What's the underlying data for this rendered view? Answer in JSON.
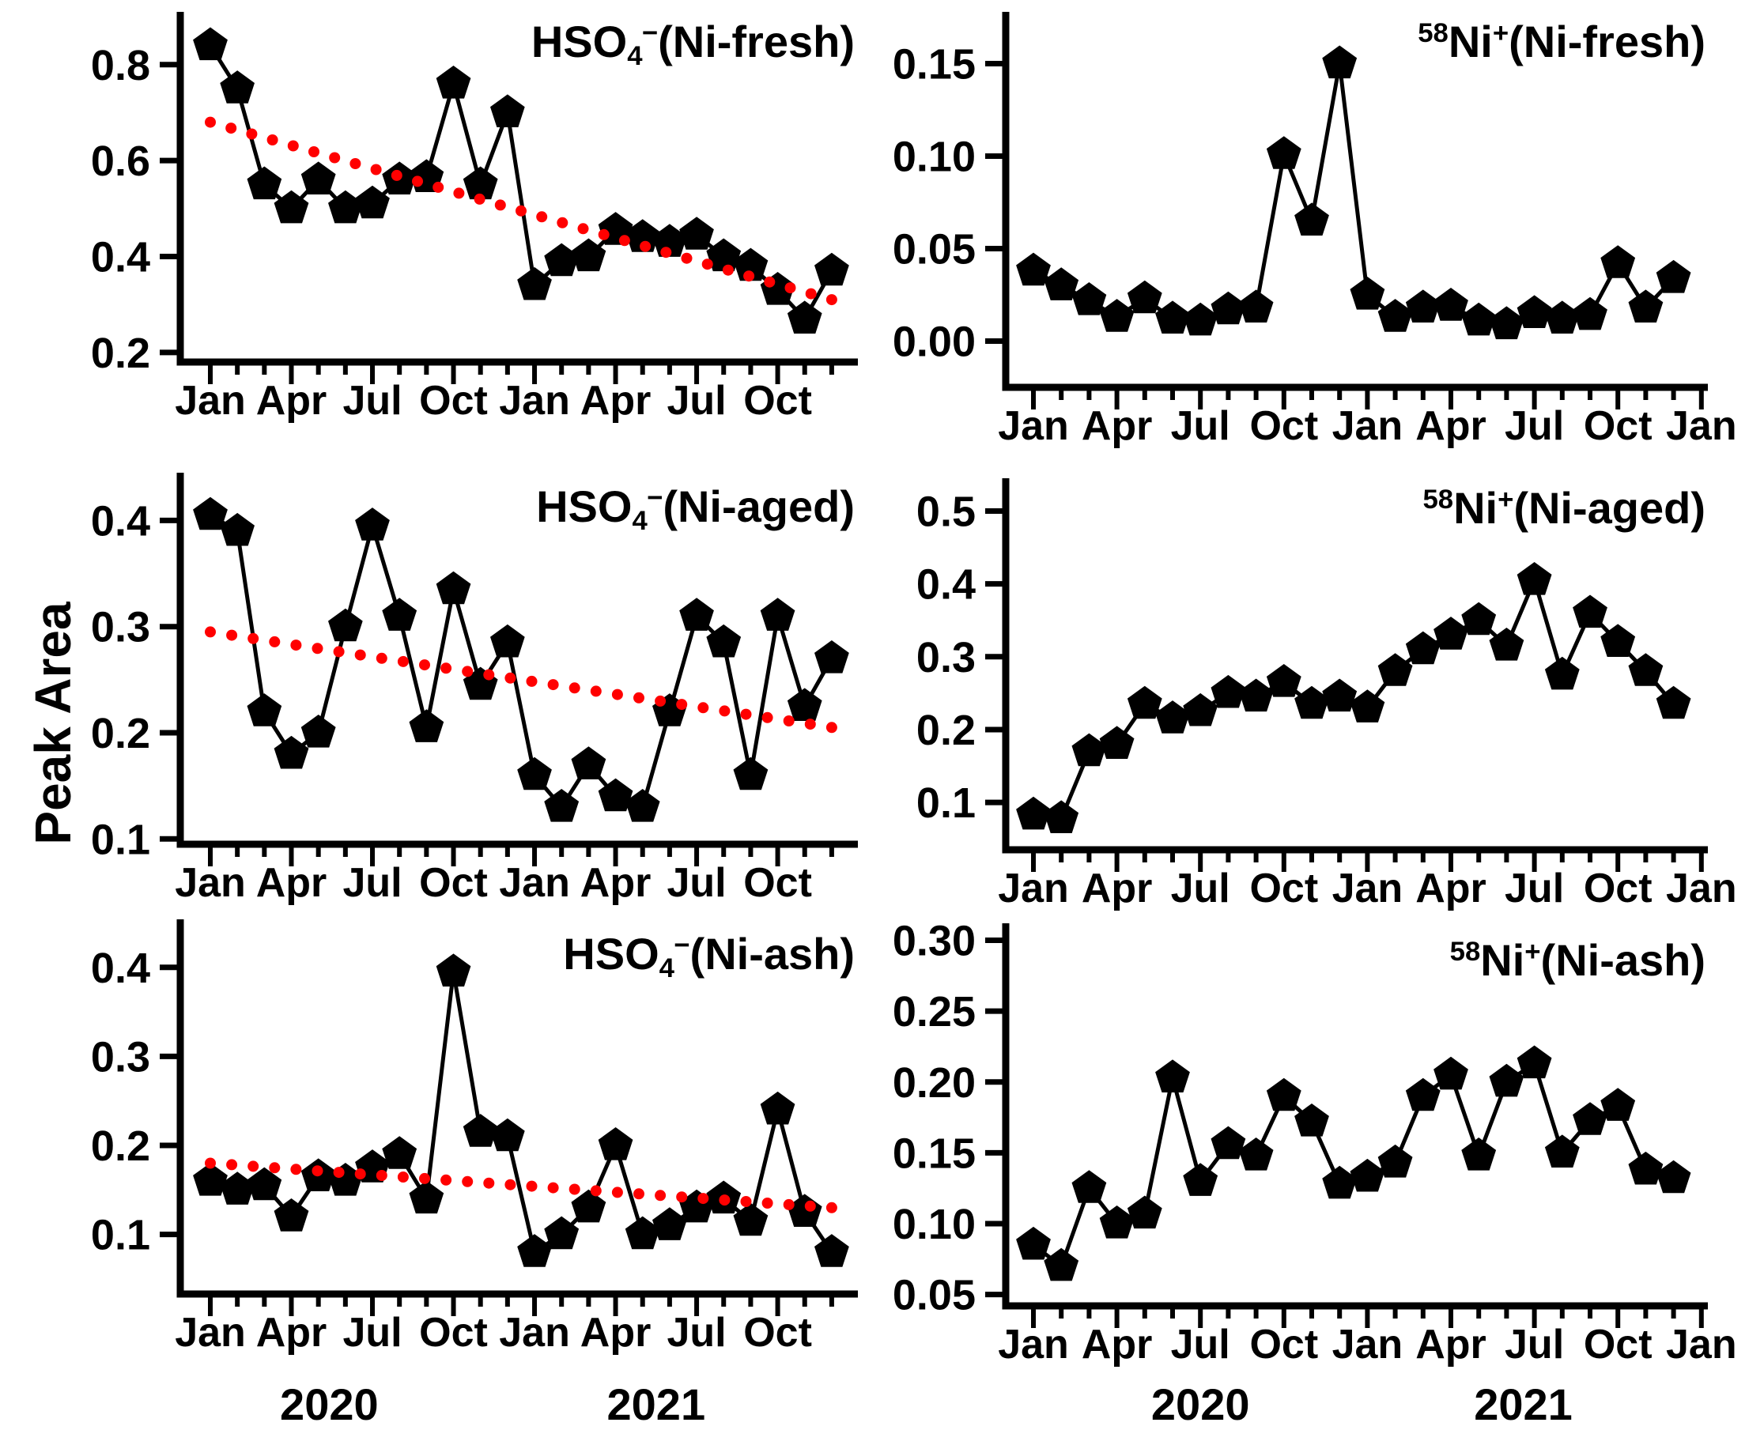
{
  "figure": {
    "ylabel": "Peak Area",
    "background_color": "#ffffff",
    "series_color": "#000000",
    "trend_color": "#ff0000"
  },
  "chart_data": [
    {
      "type": "line",
      "name": "hso4-ni-fresh",
      "panel": {
        "row": 0,
        "col": "left"
      },
      "title": {
        "presup": "",
        "base": "HSO",
        "sub": "4",
        "sup": "−",
        "suffix": "(Ni-fresh)"
      },
      "x": [
        "2020-01",
        "2020-02",
        "2020-03",
        "2020-04",
        "2020-05",
        "2020-06",
        "2020-07",
        "2020-08",
        "2020-09",
        "2020-10",
        "2020-11",
        "2020-12",
        "2021-01",
        "2021-02",
        "2021-03",
        "2021-04",
        "2021-05",
        "2021-06",
        "2021-07",
        "2021-08",
        "2021-09",
        "2021-10",
        "2021-11",
        "2021-12"
      ],
      "values": [
        0.84,
        0.75,
        0.55,
        0.5,
        0.56,
        0.5,
        0.51,
        0.56,
        0.565,
        0.76,
        0.55,
        0.7,
        0.34,
        0.39,
        0.4,
        0.455,
        0.44,
        0.43,
        0.445,
        0.4,
        0.38,
        0.33,
        0.27,
        0.37
      ],
      "trend": {
        "start": 0.68,
        "end": 0.31
      },
      "ylim": [
        0.18,
        0.91
      ],
      "yticks": [
        0.2,
        0.4,
        0.6,
        0.8
      ],
      "ytick_labels": [
        "0.2",
        "0.4",
        "0.6",
        "0.8"
      ],
      "xtick_labels": [
        "Jan",
        "Apr",
        "Jul",
        "Oct",
        "Jan",
        "Apr",
        "Jul",
        "Oct"
      ],
      "year_labels": [],
      "grid": "off",
      "marker": "pentagon"
    },
    {
      "type": "line",
      "name": "58ni-ni-fresh",
      "panel": {
        "row": 0,
        "col": "right"
      },
      "title": {
        "presup": "58",
        "base": "Ni",
        "sub": "",
        "sup": "+",
        "suffix": "(Ni-fresh)"
      },
      "x": [
        "2020-01",
        "2020-02",
        "2020-03",
        "2020-04",
        "2020-05",
        "2020-06",
        "2020-07",
        "2020-08",
        "2020-09",
        "2020-10",
        "2020-11",
        "2020-12",
        "2021-01",
        "2021-02",
        "2021-03",
        "2021-04",
        "2021-05",
        "2021-06",
        "2021-07",
        "2021-08",
        "2021-09",
        "2021-10",
        "2021-11",
        "2021-12"
      ],
      "values": [
        0.038,
        0.03,
        0.022,
        0.013,
        0.023,
        0.012,
        0.011,
        0.017,
        0.018,
        0.101,
        0.065,
        0.15,
        0.025,
        0.013,
        0.018,
        0.019,
        0.011,
        0.009,
        0.015,
        0.012,
        0.014,
        0.042,
        0.018,
        0.034
      ],
      "trend": null,
      "ylim": [
        -0.025,
        0.178
      ],
      "yticks": [
        0.0,
        0.05,
        0.1,
        0.15
      ],
      "ytick_labels": [
        "0.00",
        "0.05",
        "0.10",
        "0.15"
      ],
      "xtick_labels": [
        "Jan",
        "Apr",
        "Jul",
        "Oct",
        "Jan",
        "Apr",
        "Jul",
        "Oct",
        "Jan"
      ],
      "year_labels": [],
      "grid": "off",
      "marker": "pentagon"
    },
    {
      "type": "line",
      "name": "hso4-ni-aged",
      "panel": {
        "row": 1,
        "col": "left"
      },
      "title": {
        "presup": "",
        "base": "HSO",
        "sub": "4",
        "sup": "−",
        "suffix": "(Ni-aged)"
      },
      "x": [
        "2020-01",
        "2020-02",
        "2020-03",
        "2020-04",
        "2020-05",
        "2020-06",
        "2020-07",
        "2020-08",
        "2020-09",
        "2020-10",
        "2020-11",
        "2020-12",
        "2021-01",
        "2021-02",
        "2021-03",
        "2021-04",
        "2021-05",
        "2021-06",
        "2021-07",
        "2021-08",
        "2021-09",
        "2021-10",
        "2021-11",
        "2021-12"
      ],
      "values": [
        0.405,
        0.39,
        0.22,
        0.18,
        0.2,
        0.3,
        0.395,
        0.31,
        0.205,
        0.335,
        0.245,
        0.285,
        0.16,
        0.13,
        0.17,
        0.14,
        0.13,
        0.22,
        0.31,
        0.285,
        0.16,
        0.31,
        0.225,
        0.27
      ],
      "trend": {
        "start": 0.295,
        "end": 0.205
      },
      "ylim": [
        0.095,
        0.445
      ],
      "yticks": [
        0.1,
        0.2,
        0.3,
        0.4
      ],
      "ytick_labels": [
        "0.1",
        "0.2",
        "0.3",
        "0.4"
      ],
      "xtick_labels": [
        "Jan",
        "Apr",
        "Jul",
        "Oct",
        "Jan",
        "Apr",
        "Jul",
        "Oct"
      ],
      "year_labels": [],
      "grid": "off",
      "marker": "pentagon"
    },
    {
      "type": "line",
      "name": "58ni-ni-aged",
      "panel": {
        "row": 1,
        "col": "right"
      },
      "title": {
        "presup": "58",
        "base": "Ni",
        "sub": "",
        "sup": "+",
        "suffix": "(Ni-aged)"
      },
      "x": [
        "2020-01",
        "2020-02",
        "2020-03",
        "2020-04",
        "2020-05",
        "2020-06",
        "2020-07",
        "2020-08",
        "2020-09",
        "2020-10",
        "2020-11",
        "2020-12",
        "2021-01",
        "2021-02",
        "2021-03",
        "2021-04",
        "2021-05",
        "2021-06",
        "2021-07",
        "2021-08",
        "2021-09",
        "2021-10",
        "2021-11",
        "2021-12"
      ],
      "values": [
        0.083,
        0.078,
        0.17,
        0.18,
        0.235,
        0.215,
        0.225,
        0.25,
        0.245,
        0.265,
        0.235,
        0.245,
        0.23,
        0.28,
        0.31,
        0.33,
        0.35,
        0.315,
        0.405,
        0.275,
        0.36,
        0.32,
        0.28,
        0.235
      ],
      "trend": null,
      "ylim": [
        0.035,
        0.545
      ],
      "yticks": [
        0.1,
        0.2,
        0.3,
        0.4,
        0.5
      ],
      "ytick_labels": [
        "0.1",
        "0.2",
        "0.3",
        "0.4",
        "0.5"
      ],
      "xtick_labels": [
        "Jan",
        "Apr",
        "Jul",
        "Oct",
        "Jan",
        "Apr",
        "Jul",
        "Oct",
        "Jan"
      ],
      "year_labels": [],
      "grid": "off",
      "marker": "pentagon"
    },
    {
      "type": "line",
      "name": "hso4-ni-ash",
      "panel": {
        "row": 2,
        "col": "left"
      },
      "title": {
        "presup": "",
        "base": "HSO",
        "sub": "4",
        "sup": "−",
        "suffix": "(Ni-ash)"
      },
      "x": [
        "2020-01",
        "2020-02",
        "2020-03",
        "2020-04",
        "2020-05",
        "2020-06",
        "2020-07",
        "2020-08",
        "2020-09",
        "2020-10",
        "2020-11",
        "2020-12",
        "2021-01",
        "2021-02",
        "2021-03",
        "2021-04",
        "2021-05",
        "2021-06",
        "2021-07",
        "2021-08",
        "2021-09",
        "2021-10",
        "2021-11",
        "2021-12"
      ],
      "values": [
        0.16,
        0.15,
        0.155,
        0.12,
        0.165,
        0.16,
        0.175,
        0.19,
        0.14,
        0.395,
        0.215,
        0.21,
        0.08,
        0.1,
        0.13,
        0.2,
        0.1,
        0.11,
        0.13,
        0.14,
        0.115,
        0.24,
        0.125,
        0.08
      ],
      "trend": {
        "start": 0.18,
        "end": 0.13
      },
      "ylim": [
        0.033,
        0.454
      ],
      "yticks": [
        0.1,
        0.2,
        0.3,
        0.4
      ],
      "ytick_labels": [
        "0.1",
        "0.2",
        "0.3",
        "0.4"
      ],
      "xtick_labels": [
        "Jan",
        "Apr",
        "Jul",
        "Oct",
        "Jan",
        "Apr",
        "Jul",
        "Oct"
      ],
      "year_labels": [
        "2020",
        "2021"
      ],
      "grid": "off",
      "marker": "pentagon"
    },
    {
      "type": "line",
      "name": "58ni-ni-ash",
      "panel": {
        "row": 2,
        "col": "right"
      },
      "title": {
        "presup": "58",
        "base": "Ni",
        "sub": "",
        "sup": "+",
        "suffix": "(Ni-ash)"
      },
      "x": [
        "2020-01",
        "2020-02",
        "2020-03",
        "2020-04",
        "2020-05",
        "2020-06",
        "2020-07",
        "2020-08",
        "2020-09",
        "2020-10",
        "2020-11",
        "2020-12",
        "2021-01",
        "2021-02",
        "2021-03",
        "2021-04",
        "2021-05",
        "2021-06",
        "2021-07",
        "2021-08",
        "2021-09",
        "2021-10",
        "2021-11",
        "2021-12"
      ],
      "values": [
        0.085,
        0.07,
        0.125,
        0.1,
        0.107,
        0.203,
        0.13,
        0.156,
        0.148,
        0.19,
        0.172,
        0.128,
        0.133,
        0.143,
        0.19,
        0.205,
        0.148,
        0.2,
        0.213,
        0.15,
        0.173,
        0.183,
        0.138,
        0.132
      ],
      "trend": null,
      "ylim": [
        0.042,
        0.312
      ],
      "yticks": [
        0.05,
        0.1,
        0.15,
        0.2,
        0.25,
        0.3
      ],
      "ytick_labels": [
        "0.05",
        "0.10",
        "0.15",
        "0.20",
        "0.25",
        "0.30"
      ],
      "xtick_labels": [
        "Jan",
        "Apr",
        "Jul",
        "Oct",
        "Jan",
        "Apr",
        "Jul",
        "Oct",
        "Jan"
      ],
      "year_labels": [
        "2020",
        "2021"
      ],
      "grid": "off",
      "marker": "pentagon"
    }
  ]
}
